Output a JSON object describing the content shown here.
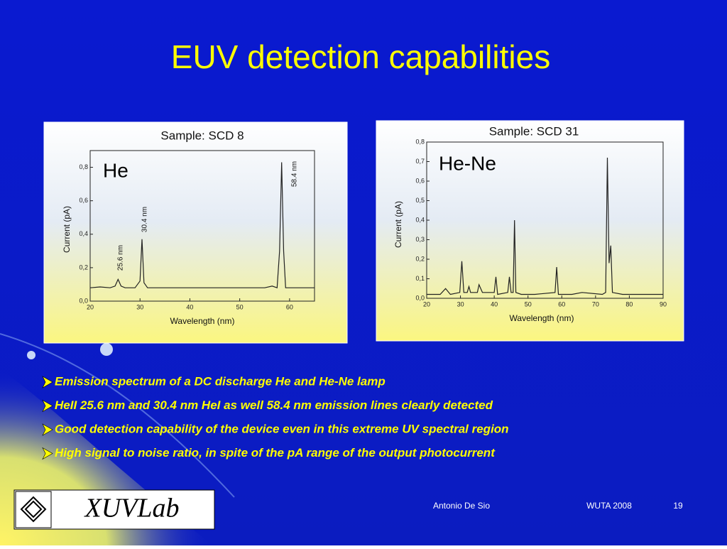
{
  "title": "EUV detection capabilities",
  "chart_data": [
    {
      "type": "line",
      "title": "Sample: SCD 8",
      "annotation": "He",
      "peak_labels": [
        "25.6 nm",
        "30.4 nm",
        "58.4 nm"
      ],
      "x_label": "Wavelength (nm)",
      "y_label": "Current (pA)",
      "x": [
        20,
        22,
        24,
        25,
        25.6,
        26.2,
        27,
        29,
        30,
        30.4,
        30.8,
        31.5,
        35,
        40,
        45,
        50,
        55,
        56.5,
        57.5,
        58,
        58.4,
        58.8,
        59.2,
        62,
        65
      ],
      "values": [
        0.08,
        0.085,
        0.08,
        0.09,
        0.13,
        0.09,
        0.08,
        0.08,
        0.12,
        0.37,
        0.11,
        0.08,
        0.08,
        0.08,
        0.08,
        0.08,
        0.08,
        0.09,
        0.08,
        0.3,
        0.83,
        0.3,
        0.08,
        0.08,
        0.08
      ],
      "color": "#222222",
      "xlim": [
        20,
        65
      ],
      "xticks": [
        20,
        30,
        40,
        50,
        60
      ],
      "ylim": [
        0,
        0.9
      ],
      "yticks": [
        {
          "value": 0,
          "label": "0,0"
        },
        {
          "value": 0.2,
          "label": "0,2"
        },
        {
          "value": 0.4,
          "label": "0,4"
        },
        {
          "value": 0.6,
          "label": "0,6"
        },
        {
          "value": 0.8,
          "label": "0,8"
        }
      ]
    },
    {
      "type": "line",
      "title": "Sample: SCD 31",
      "annotation": "He-Ne",
      "x_label": "Wavelength (nm)",
      "y_label": "Current (pA)",
      "x": [
        20,
        24,
        25.6,
        27,
        29.8,
        30.4,
        31,
        32,
        32.5,
        33,
        35,
        35.5,
        36.5,
        40,
        40.5,
        41,
        44,
        44.5,
        45,
        45.6,
        46,
        46.4,
        48,
        52,
        58,
        58.5,
        59,
        63,
        66,
        72,
        73,
        73.5,
        74,
        74.5,
        75,
        78,
        90
      ],
      "values": [
        0.02,
        0.02,
        0.05,
        0.02,
        0.03,
        0.19,
        0.03,
        0.03,
        0.06,
        0.03,
        0.03,
        0.07,
        0.03,
        0.03,
        0.11,
        0.02,
        0.03,
        0.11,
        0.03,
        0.03,
        0.4,
        0.03,
        0.02,
        0.02,
        0.03,
        0.16,
        0.02,
        0.02,
        0.03,
        0.02,
        0.03,
        0.72,
        0.18,
        0.27,
        0.03,
        0.02,
        0.02
      ],
      "color": "#222222",
      "xlim": [
        20,
        90
      ],
      "xticks": [
        20,
        30,
        40,
        50,
        60,
        70,
        80,
        90
      ],
      "ylim": [
        0,
        0.8
      ],
      "yticks": [
        {
          "value": 0,
          "label": "0,0"
        },
        {
          "value": 0.1,
          "label": "0,1"
        },
        {
          "value": 0.2,
          "label": "0,2"
        },
        {
          "value": 0.3,
          "label": "0,3"
        },
        {
          "value": 0.4,
          "label": "0,4"
        },
        {
          "value": 0.5,
          "label": "0,5"
        },
        {
          "value": 0.6,
          "label": "0,6"
        },
        {
          "value": 0.7,
          "label": "0,7"
        },
        {
          "value": 0.8,
          "label": "0,8"
        }
      ]
    }
  ],
  "bullets": [
    "Emission spectrum of a DC discharge He and He-Ne lamp",
    "HeII 25.6 nm and 30.4 nm HeI as well 58.4 nm emission lines clearly detected",
    "Good detection capability of the device even in this extreme UV spectral region",
    "High signal to noise ratio, in spite of the pA range of the output photocurrent"
  ],
  "footer": {
    "logo": "XUVLab",
    "author": "Antonio De Sio",
    "event": "WUTA 2008",
    "page": "19"
  }
}
